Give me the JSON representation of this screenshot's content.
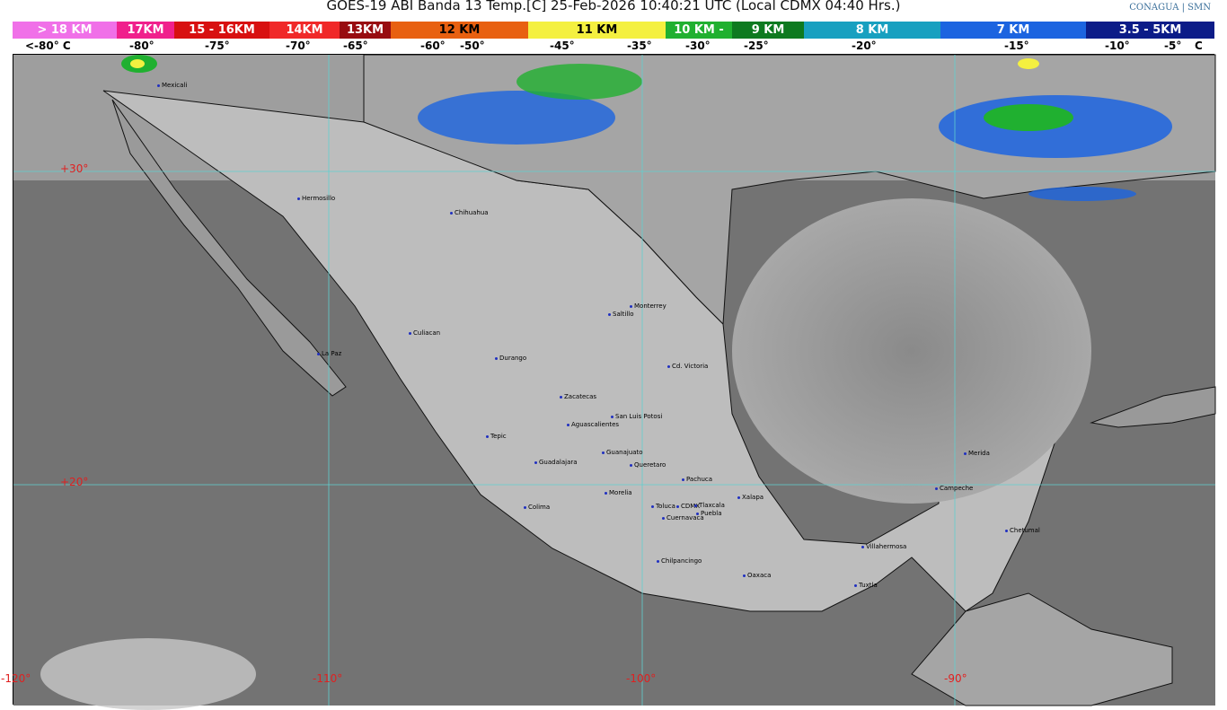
{
  "title": "GOES-19 ABI Banda 13 Temp.[C] 25-Feb-2026 10:40:21 UTC (Local CDMX  04:40 Hrs.)",
  "logos": {
    "conagua": "CONAGUA",
    "smn": "SMN"
  },
  "legend": {
    "segments": [
      {
        "label": "> 18 KM",
        "color": "#f070e8",
        "width": 116
      },
      {
        "label": "17KM",
        "color": "#f0208c",
        "width": 64
      },
      {
        "label": "15 - 16KM",
        "color": "#d81010",
        "width": 106
      },
      {
        "label": "14KM",
        "color": "#f02828",
        "width": 78
      },
      {
        "label": "13KM",
        "color": "#980c10",
        "width": 57
      },
      {
        "label": "12 KM",
        "color": "#e86010",
        "width": 153
      },
      {
        "label": "11 KM",
        "color": "#f4f040",
        "width": 153
      },
      {
        "label": "10 KM -",
        "color": "#20b030",
        "width": 74
      },
      {
        "label": " 9 KM",
        "color": "#0e7a20",
        "width": 80
      },
      {
        "label": "8 KM",
        "color": "#18a0c0",
        "width": 152
      },
      {
        "label": "7 KM",
        "color": "#1c64e0",
        "width": 162
      },
      {
        "label": "3.5 - 5KM",
        "color": "#0c1c88",
        "width": 143
      }
    ],
    "ticks": [
      "<-80° C",
      "-80°",
      "-75°",
      "-70°",
      "-65°",
      "-60°",
      "-50°",
      "-45°",
      "-35°",
      "-30°",
      "-25°",
      "-20°",
      "-15°",
      "-10°",
      "-5°",
      "C"
    ]
  },
  "grid": {
    "lat": [
      "+30°",
      "+20°"
    ],
    "lon": [
      "-120°",
      "-110°",
      "-100°",
      "-90°"
    ]
  },
  "cities": [
    "Mexicali",
    "Hermosillo",
    "Chihuahua",
    "Monterrey",
    "Saltillo",
    "Culiacan",
    "La Paz",
    "Durango",
    "Cd. Victoria",
    "Zacatecas",
    "San Luis Potosi",
    "Aguascalientes",
    "Tepic",
    "Guanajuato",
    "Guadalajara",
    "Queretaro",
    "Pachuca",
    "Morelia",
    "Xalapa",
    "Colima",
    "Toluca",
    "CDMX",
    "Tlaxcala",
    "Puebla",
    "Cuernavaca",
    "Merida",
    "Campeche",
    "Chetumal",
    "Villahermosa",
    "Chilpancingo",
    "Oaxaca",
    "Tuxtla"
  ]
}
